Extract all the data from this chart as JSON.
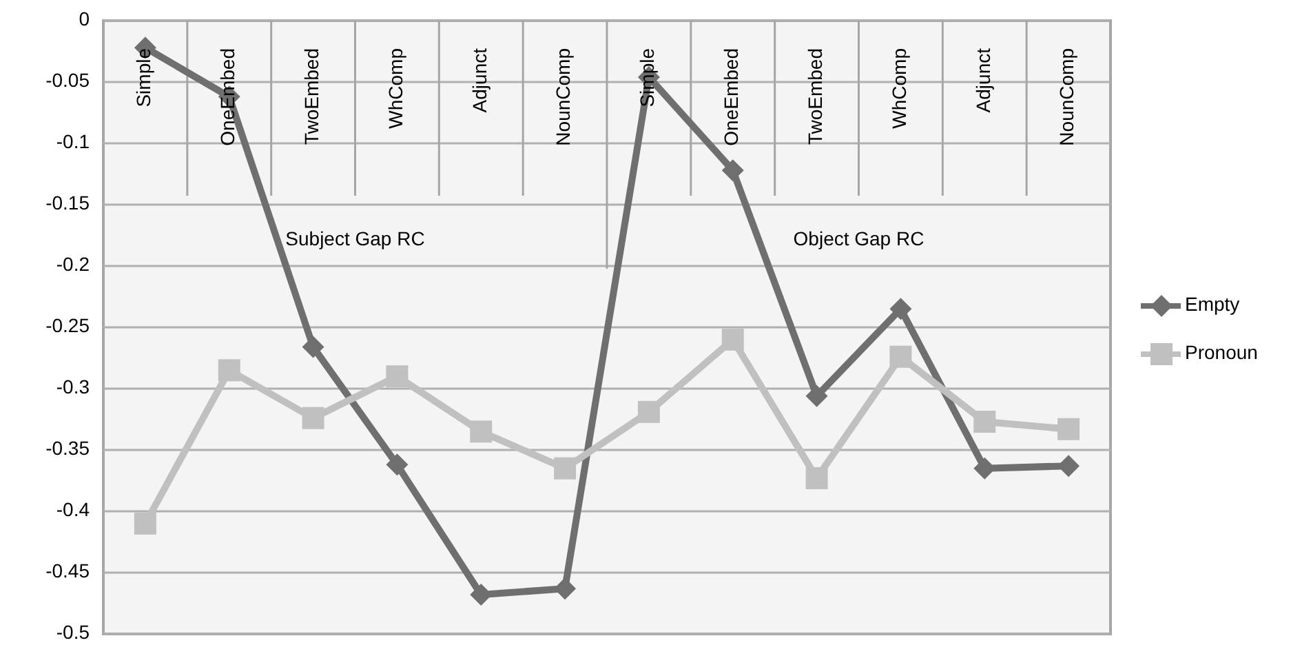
{
  "chart_data": {
    "type": "line",
    "categories": [
      "Simple",
      "OneEmbed",
      "TwoEmbed",
      "WhComp",
      "Adjunct",
      "NounComp",
      "Simple",
      "OneEmbed",
      "TwoEmbed",
      "WhComp",
      "Adjunct",
      "NounComp"
    ],
    "annotations": [
      "Subject Gap RC",
      "Object Gap RC"
    ],
    "series": [
      {
        "name": "Empty",
        "color": "#6f6f6f",
        "marker": "diamond",
        "values": [
          -0.022,
          -0.062,
          -0.266,
          -0.362,
          -0.468,
          -0.463,
          -0.046,
          -0.122,
          -0.306,
          -0.235,
          -0.365,
          -0.363
        ]
      },
      {
        "name": "Pronoun",
        "color": "#c0c0c0",
        "marker": "square",
        "values": [
          -0.41,
          -0.285,
          -0.324,
          -0.29,
          -0.335,
          -0.365,
          -0.319,
          -0.26,
          -0.373,
          -0.274,
          -0.327,
          -0.333
        ]
      }
    ],
    "ylim": [
      -0.5,
      0
    ],
    "yticks": [
      -0.5,
      -0.45,
      -0.4,
      -0.35,
      -0.3,
      -0.25,
      -0.2,
      -0.15,
      -0.1,
      -0.05,
      0
    ],
    "grid": "y",
    "legend": "right",
    "line_style": "solid"
  }
}
